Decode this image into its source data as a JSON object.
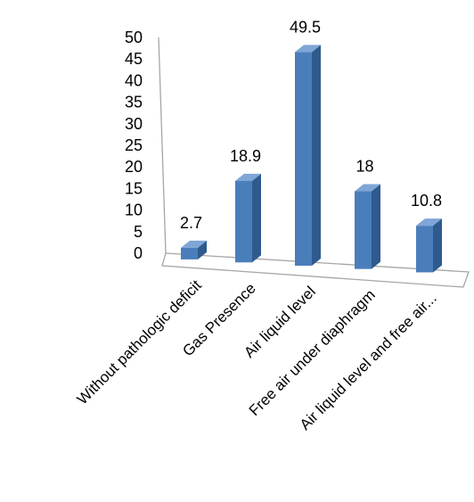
{
  "chart_data": {
    "type": "bar",
    "style": "3d-column",
    "categories": [
      "Without pathologic deficit",
      "Gas Presence",
      "Air liquid level",
      "Free air under diaphragm",
      "Air liquid level and free air..."
    ],
    "values": [
      2.7,
      18.9,
      49.5,
      18,
      10.8
    ],
    "data_labels": [
      "2.7",
      "18.9",
      "49.5",
      "18",
      "10.8"
    ],
    "y_ticks": [
      "0",
      "5",
      "10",
      "15",
      "20",
      "25",
      "30",
      "35",
      "40",
      "45",
      "50"
    ],
    "ylim": [
      0,
      50
    ],
    "title": "",
    "xlabel": "",
    "ylabel": "",
    "grid": false,
    "legend": "none",
    "colors": {
      "bar_front": "#4a7ebb",
      "bar_side": "#2e5a8e",
      "bar_top": "#7fa6d6",
      "axis": "#a6a6a6"
    }
  }
}
